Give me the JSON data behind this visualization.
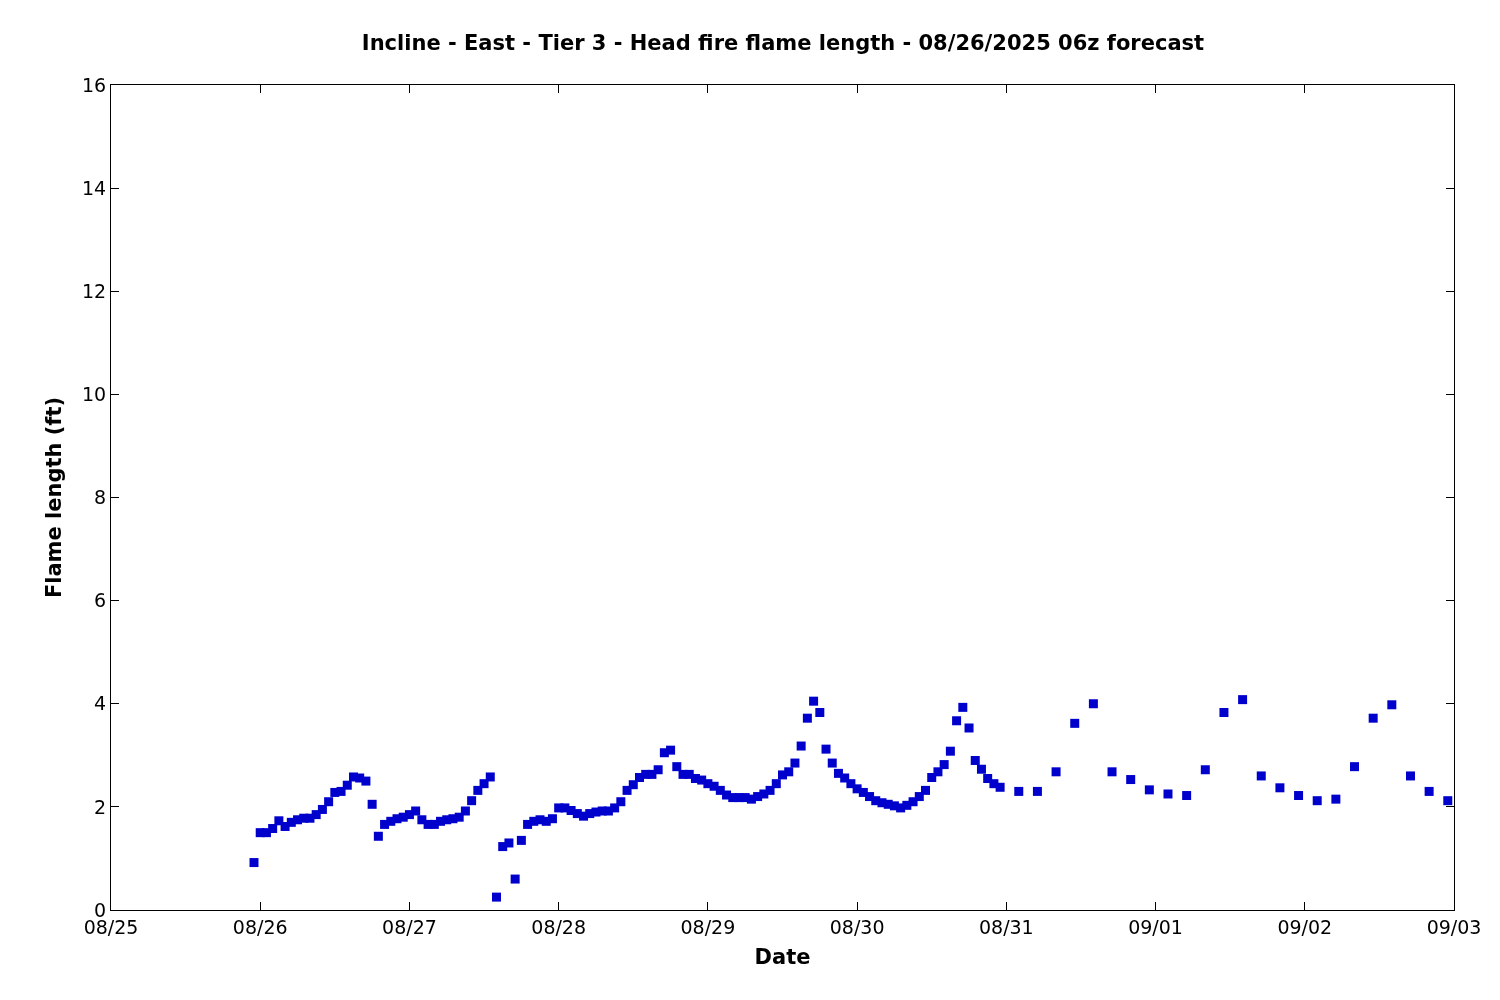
{
  "chart_data": {
    "type": "scatter",
    "title": "Incline - East - Tier 3 - Head fire flame length - 08/26/2025 06z forecast",
    "xlabel": "Date",
    "ylabel": "Flame length (ft)",
    "marker": "square",
    "xlim": [
      "2025-08-25",
      "2025-09-03"
    ],
    "xticks": [
      {
        "value": "2025-08-25",
        "label": "08/25"
      },
      {
        "value": "2025-08-26",
        "label": "08/26"
      },
      {
        "value": "2025-08-27",
        "label": "08/27"
      },
      {
        "value": "2025-08-28",
        "label": "08/28"
      },
      {
        "value": "2025-08-29",
        "label": "08/29"
      },
      {
        "value": "2025-08-30",
        "label": "08/30"
      },
      {
        "value": "2025-08-31",
        "label": "08/31"
      },
      {
        "value": "2025-09-01",
        "label": "09/01"
      },
      {
        "value": "2025-09-02",
        "label": "09/02"
      },
      {
        "value": "2025-09-03",
        "label": "09/03"
      }
    ],
    "ylim": [
      0,
      16
    ],
    "yticks": [
      0,
      2,
      4,
      6,
      8,
      10,
      12,
      14,
      16
    ],
    "x": [
      "2025-08-25T23:00",
      "2025-08-26T00:00",
      "2025-08-26T01:00",
      "2025-08-26T02:00",
      "2025-08-26T03:00",
      "2025-08-26T04:00",
      "2025-08-26T05:00",
      "2025-08-26T06:00",
      "2025-08-26T07:00",
      "2025-08-26T08:00",
      "2025-08-26T09:00",
      "2025-08-26T10:00",
      "2025-08-26T11:00",
      "2025-08-26T12:00",
      "2025-08-26T13:00",
      "2025-08-26T14:00",
      "2025-08-26T15:00",
      "2025-08-26T16:00",
      "2025-08-26T17:00",
      "2025-08-26T18:00",
      "2025-08-26T19:00",
      "2025-08-26T20:00",
      "2025-08-26T21:00",
      "2025-08-26T22:00",
      "2025-08-26T23:00",
      "2025-08-27T00:00",
      "2025-08-27T01:00",
      "2025-08-27T02:00",
      "2025-08-27T03:00",
      "2025-08-27T04:00",
      "2025-08-27T05:00",
      "2025-08-27T06:00",
      "2025-08-27T07:00",
      "2025-08-27T08:00",
      "2025-08-27T09:00",
      "2025-08-27T10:00",
      "2025-08-27T11:00",
      "2025-08-27T12:00",
      "2025-08-27T13:00",
      "2025-08-27T14:00",
      "2025-08-27T15:00",
      "2025-08-27T16:00",
      "2025-08-27T17:00",
      "2025-08-27T18:00",
      "2025-08-27T19:00",
      "2025-08-27T20:00",
      "2025-08-27T21:00",
      "2025-08-27T22:00",
      "2025-08-27T23:00",
      "2025-08-28T00:00",
      "2025-08-28T01:00",
      "2025-08-28T02:00",
      "2025-08-28T03:00",
      "2025-08-28T04:00",
      "2025-08-28T05:00",
      "2025-08-28T06:00",
      "2025-08-28T07:00",
      "2025-08-28T08:00",
      "2025-08-28T09:00",
      "2025-08-28T10:00",
      "2025-08-28T11:00",
      "2025-08-28T12:00",
      "2025-08-28T13:00",
      "2025-08-28T14:00",
      "2025-08-28T15:00",
      "2025-08-28T16:00",
      "2025-08-28T17:00",
      "2025-08-28T18:00",
      "2025-08-28T19:00",
      "2025-08-28T20:00",
      "2025-08-28T21:00",
      "2025-08-28T22:00",
      "2025-08-28T23:00",
      "2025-08-29T00:00",
      "2025-08-29T01:00",
      "2025-08-29T02:00",
      "2025-08-29T03:00",
      "2025-08-29T04:00",
      "2025-08-29T05:00",
      "2025-08-29T06:00",
      "2025-08-29T07:00",
      "2025-08-29T08:00",
      "2025-08-29T09:00",
      "2025-08-29T10:00",
      "2025-08-29T11:00",
      "2025-08-29T12:00",
      "2025-08-29T13:00",
      "2025-08-29T14:00",
      "2025-08-29T15:00",
      "2025-08-29T16:00",
      "2025-08-29T17:00",
      "2025-08-29T18:00",
      "2025-08-29T19:00",
      "2025-08-29T20:00",
      "2025-08-29T21:00",
      "2025-08-29T22:00",
      "2025-08-29T23:00",
      "2025-08-30T00:00",
      "2025-08-30T01:00",
      "2025-08-30T02:00",
      "2025-08-30T03:00",
      "2025-08-30T04:00",
      "2025-08-30T05:00",
      "2025-08-30T06:00",
      "2025-08-30T07:00",
      "2025-08-30T08:00",
      "2025-08-30T09:00",
      "2025-08-30T10:00",
      "2025-08-30T11:00",
      "2025-08-30T12:00",
      "2025-08-30T13:00",
      "2025-08-30T14:00",
      "2025-08-30T15:00",
      "2025-08-30T16:00",
      "2025-08-30T17:00",
      "2025-08-30T18:00",
      "2025-08-30T19:00",
      "2025-08-30T20:00",
      "2025-08-30T21:00",
      "2025-08-30T22:00",
      "2025-08-30T23:00",
      "2025-08-31T02:00",
      "2025-08-31T05:00",
      "2025-08-31T08:00",
      "2025-08-31T11:00",
      "2025-08-31T14:00",
      "2025-08-31T17:00",
      "2025-08-31T20:00",
      "2025-08-31T23:00",
      "2025-09-01T02:00",
      "2025-09-01T05:00",
      "2025-09-01T08:00",
      "2025-09-01T11:00",
      "2025-09-01T14:00",
      "2025-09-01T17:00",
      "2025-09-01T20:00",
      "2025-09-01T23:00",
      "2025-09-02T02:00",
      "2025-09-02T05:00",
      "2025-09-02T08:00",
      "2025-09-02T11:00",
      "2025-09-02T14:00",
      "2025-09-02T17:00",
      "2025-09-02T20:00",
      "2025-09-02T23:00"
    ],
    "series": [
      {
        "color": "#0000cc",
        "values": [
          0.92,
          1.5,
          1.5,
          1.58,
          1.73,
          1.62,
          1.7,
          1.75,
          1.78,
          1.78,
          1.85,
          1.95,
          2.1,
          2.28,
          2.3,
          2.42,
          2.58,
          2.56,
          2.5,
          2.05,
          1.43,
          1.66,
          1.72,
          1.77,
          1.8,
          1.85,
          1.92,
          1.75,
          1.66,
          1.66,
          1.72,
          1.75,
          1.77,
          1.8,
          1.92,
          2.12,
          2.32,
          2.45,
          2.58,
          0.25,
          1.23,
          1.3,
          0.6,
          1.35,
          1.66,
          1.72,
          1.75,
          1.72,
          1.77,
          1.98,
          1.98,
          1.93,
          1.87,
          1.82,
          1.87,
          1.9,
          1.92,
          1.92,
          1.98,
          2.1,
          2.32,
          2.43,
          2.57,
          2.63,
          2.63,
          2.72,
          3.05,
          3.1,
          2.78,
          2.63,
          2.63,
          2.55,
          2.52,
          2.45,
          2.4,
          2.32,
          2.23,
          2.18,
          2.18,
          2.18,
          2.15,
          2.2,
          2.25,
          2.32,
          2.45,
          2.62,
          2.68,
          2.85,
          3.18,
          3.72,
          4.05,
          3.83,
          3.12,
          2.85,
          2.65,
          2.56,
          2.45,
          2.35,
          2.28,
          2.2,
          2.12,
          2.08,
          2.05,
          2.02,
          1.98,
          2.03,
          2.1,
          2.2,
          2.32,
          2.57,
          2.68,
          2.82,
          3.08,
          3.67,
          3.93,
          3.53,
          2.9,
          2.73,
          2.55,
          2.45,
          2.38,
          2.3,
          2.3,
          2.68,
          3.62,
          4.0,
          2.68,
          2.53,
          2.33,
          2.25,
          2.22,
          2.72,
          3.83,
          4.08,
          2.6,
          2.37,
          2.22,
          2.12,
          2.15,
          2.78,
          3.72,
          3.98,
          2.6,
          2.3,
          2.12
        ]
      }
    ]
  }
}
